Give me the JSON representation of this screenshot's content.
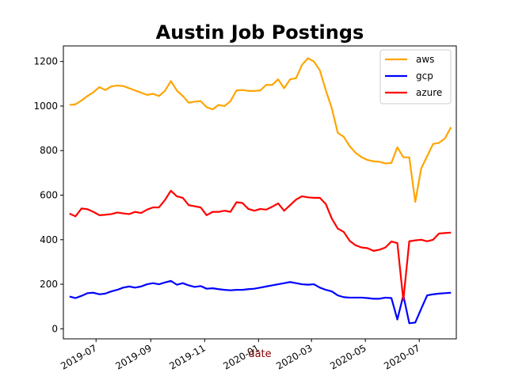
{
  "chart_data": {
    "type": "line",
    "title": "Austin Job Postings",
    "xlabel": "date",
    "ylabel": "",
    "x_date_range": [
      "2019-06-01",
      "2020-08-06"
    ],
    "xlim": [
      "2019-05-25",
      "2020-08-12"
    ],
    "ylim": [
      -45,
      1270
    ],
    "x_ticks": [
      {
        "label": "2019-07",
        "date": "2019-07-01"
      },
      {
        "label": "2019-09",
        "date": "2019-09-01"
      },
      {
        "label": "2019-11",
        "date": "2019-11-01"
      },
      {
        "label": "2020-01",
        "date": "2020-01-01"
      },
      {
        "label": "2020-03",
        "date": "2020-03-01"
      },
      {
        "label": "2020-05",
        "date": "2020-05-01"
      },
      {
        "label": "2020-07",
        "date": "2020-07-01"
      }
    ],
    "y_ticks": [
      0,
      200,
      400,
      600,
      800,
      1000,
      1200
    ],
    "grid": false,
    "legend": "top-right",
    "colors": {
      "title": "#000000",
      "xlabel": "#8b0000"
    },
    "series": [
      {
        "name": "aws",
        "color": "#ffa500",
        "values": [
          1005,
          1008,
          1025,
          1045,
          1062,
          1085,
          1072,
          1088,
          1092,
          1090,
          1080,
          1070,
          1060,
          1050,
          1055,
          1045,
          1068,
          1112,
          1070,
          1045,
          1015,
          1020,
          1022,
          995,
          985,
          1005,
          1000,
          1022,
          1070,
          1072,
          1068,
          1068,
          1070,
          1095,
          1095,
          1120,
          1080,
          1120,
          1125,
          1185,
          1215,
          1200,
          1160,
          1070,
          990,
          880,
          862,
          820,
          790,
          770,
          758,
          752,
          750,
          742,
          745,
          815,
          770,
          770,
          570,
          720,
          775,
          830,
          835,
          855,
          905
        ]
      },
      {
        "name": "gcp",
        "color": "#0000ff",
        "values": [
          145,
          138,
          148,
          160,
          162,
          155,
          158,
          168,
          175,
          185,
          190,
          185,
          190,
          200,
          205,
          200,
          208,
          215,
          198,
          205,
          195,
          188,
          192,
          180,
          182,
          178,
          175,
          173,
          175,
          175,
          178,
          180,
          185,
          190,
          195,
          200,
          205,
          210,
          205,
          200,
          198,
          200,
          185,
          175,
          168,
          150,
          142,
          140,
          140,
          140,
          138,
          135,
          135,
          140,
          138,
          42,
          150,
          25,
          28,
          90,
          150,
          155,
          158,
          160,
          162
        ]
      },
      {
        "name": "azure",
        "color": "#ff0000",
        "values": [
          517,
          505,
          540,
          537,
          525,
          510,
          512,
          515,
          522,
          518,
          515,
          525,
          520,
          535,
          545,
          545,
          578,
          620,
          595,
          588,
          555,
          550,
          545,
          510,
          525,
          525,
          530,
          525,
          568,
          565,
          538,
          530,
          538,
          535,
          548,
          563,
          530,
          555,
          580,
          595,
          590,
          588,
          588,
          560,
          495,
          450,
          435,
          395,
          375,
          365,
          362,
          350,
          355,
          365,
          392,
          385,
          128,
          393,
          397,
          400,
          393,
          400,
          428,
          430,
          432
        ]
      }
    ]
  }
}
